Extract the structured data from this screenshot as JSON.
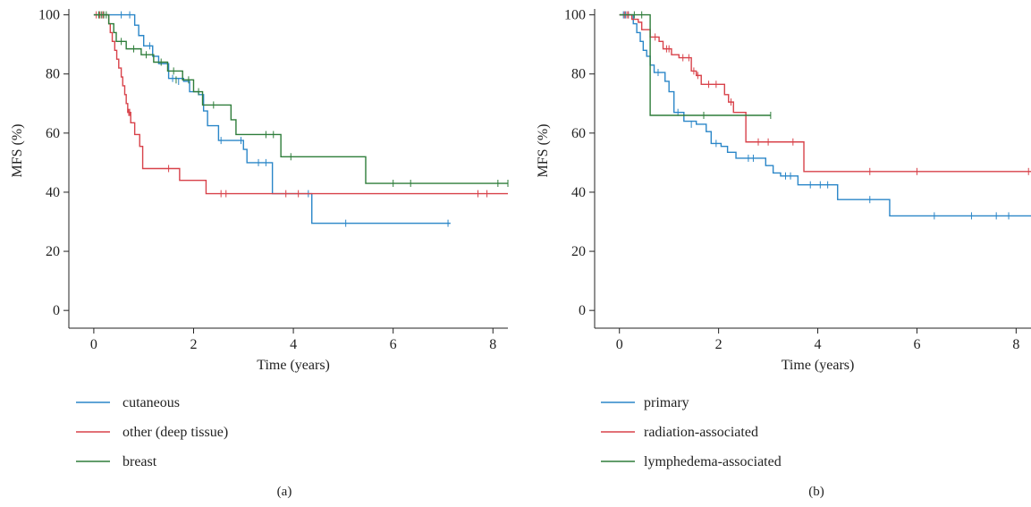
{
  "colors": {
    "blue": "#2a86c8",
    "red": "#d8424a",
    "green": "#2e7d3a"
  },
  "chart_data": [
    {
      "type": "line",
      "title": "",
      "xlabel": "Time (years)",
      "ylabel": "MFS (%)",
      "xlim": [
        -0.5,
        8.3
      ],
      "ylim": [
        -6,
        102
      ],
      "xticks": [
        0,
        2,
        4,
        6,
        8
      ],
      "yticks": [
        0,
        20,
        40,
        60,
        80,
        100
      ],
      "legend_position": "below",
      "panel_label": "(a)",
      "series": [
        {
          "name": "cutaneous",
          "color": "#2a86c8",
          "steps": [
            [
              0,
              100
            ],
            [
              0.82,
              96.5
            ],
            [
              0.9,
              93
            ],
            [
              1.0,
              89.5
            ],
            [
              1.18,
              86
            ],
            [
              1.3,
              83.5
            ],
            [
              1.5,
              78.5
            ],
            [
              1.8,
              77.5
            ],
            [
              1.92,
              74
            ],
            [
              2.1,
              73
            ],
            [
              2.2,
              67.5
            ],
            [
              2.28,
              62.5
            ],
            [
              2.5,
              57.5
            ],
            [
              3.0,
              54.5
            ],
            [
              3.07,
              50
            ],
            [
              3.58,
              39.5
            ],
            [
              4.37,
              29.5
            ],
            [
              7.15,
              29.5
            ]
          ],
          "censored": [
            [
              0.55,
              100
            ],
            [
              0.72,
              100
            ],
            [
              1.12,
              89.5
            ],
            [
              1.58,
              78.5
            ],
            [
              1.7,
              77.5
            ],
            [
              2.55,
              57.5
            ],
            [
              2.95,
              57.5
            ],
            [
              3.3,
              50
            ],
            [
              3.45,
              50
            ],
            [
              4.3,
              39.5
            ],
            [
              5.05,
              29.5
            ],
            [
              7.1,
              29.5
            ]
          ]
        },
        {
          "name": "other (deep tissue)",
          "color": "#d8424a",
          "steps": [
            [
              0,
              100
            ],
            [
              0.3,
              97
            ],
            [
              0.33,
              94
            ],
            [
              0.37,
              91
            ],
            [
              0.42,
              88
            ],
            [
              0.46,
              85
            ],
            [
              0.5,
              82
            ],
            [
              0.55,
              79
            ],
            [
              0.58,
              76
            ],
            [
              0.62,
              73
            ],
            [
              0.65,
              70
            ],
            [
              0.68,
              67
            ],
            [
              0.74,
              63.5
            ],
            [
              0.82,
              59.5
            ],
            [
              0.92,
              55.5
            ],
            [
              0.98,
              48
            ],
            [
              1.72,
              44
            ],
            [
              2.25,
              39.5
            ],
            [
              8.3,
              39.5
            ]
          ],
          "censored": [
            [
              0.05,
              100
            ],
            [
              0.12,
              100
            ],
            [
              0.18,
              100
            ],
            [
              0.7,
              67
            ],
            [
              0.72,
              67
            ],
            [
              1.5,
              48
            ],
            [
              2.55,
              39.5
            ],
            [
              2.65,
              39.5
            ],
            [
              3.85,
              39.5
            ],
            [
              4.1,
              39.5
            ],
            [
              7.7,
              39.5
            ],
            [
              7.88,
              39.5
            ]
          ]
        },
        {
          "name": "breast",
          "color": "#2e7d3a",
          "steps": [
            [
              0,
              100
            ],
            [
              0.3,
              97
            ],
            [
              0.4,
              94
            ],
            [
              0.45,
              91
            ],
            [
              0.65,
              88.5
            ],
            [
              0.95,
              86.5
            ],
            [
              1.2,
              84
            ],
            [
              1.48,
              81
            ],
            [
              1.78,
              78
            ],
            [
              2.0,
              74
            ],
            [
              2.18,
              69.5
            ],
            [
              2.75,
              64.5
            ],
            [
              2.85,
              59.5
            ],
            [
              3.75,
              52
            ],
            [
              5.45,
              43
            ],
            [
              8.3,
              43
            ]
          ],
          "censored": [
            [
              0.1,
              100
            ],
            [
              0.15,
              100
            ],
            [
              0.2,
              100
            ],
            [
              0.25,
              100
            ],
            [
              0.55,
              91
            ],
            [
              0.8,
              88.5
            ],
            [
              1.05,
              86.5
            ],
            [
              1.35,
              84
            ],
            [
              1.6,
              81
            ],
            [
              1.65,
              78
            ],
            [
              1.9,
              78
            ],
            [
              2.1,
              74
            ],
            [
              2.4,
              69.5
            ],
            [
              3.45,
              59.5
            ],
            [
              3.6,
              59.5
            ],
            [
              3.95,
              52
            ],
            [
              6.0,
              43
            ],
            [
              6.35,
              43
            ],
            [
              8.1,
              43
            ],
            [
              8.3,
              43
            ]
          ]
        }
      ]
    },
    {
      "type": "line",
      "title": "",
      "xlabel": "Time (years)",
      "ylabel": "MFS (%)",
      "xlim": [
        -0.5,
        8.3
      ],
      "ylim": [
        -6,
        102
      ],
      "xticks": [
        0,
        2,
        4,
        6,
        8
      ],
      "yticks": [
        0,
        20,
        40,
        60,
        80,
        100
      ],
      "legend_position": "below",
      "panel_label": "(b)",
      "series": [
        {
          "name": "primary",
          "color": "#2a86c8",
          "steps": [
            [
              0,
              100
            ],
            [
              0.28,
              97
            ],
            [
              0.35,
              94
            ],
            [
              0.42,
              91
            ],
            [
              0.48,
              88
            ],
            [
              0.55,
              86
            ],
            [
              0.62,
              83
            ],
            [
              0.7,
              80.5
            ],
            [
              0.92,
              77.5
            ],
            [
              1.0,
              74
            ],
            [
              1.1,
              67
            ],
            [
              1.3,
              64
            ],
            [
              1.55,
              63
            ],
            [
              1.75,
              60.5
            ],
            [
              1.85,
              56.5
            ],
            [
              2.05,
              55.5
            ],
            [
              2.18,
              53.5
            ],
            [
              2.35,
              51.5
            ],
            [
              2.95,
              49
            ],
            [
              3.1,
              46.5
            ],
            [
              3.25,
              45.5
            ],
            [
              3.6,
              42.5
            ],
            [
              4.3,
              42.5
            ],
            [
              4.4,
              37.5
            ],
            [
              5.45,
              32
            ],
            [
              8.3,
              32
            ]
          ],
          "censored": [
            [
              0.08,
              100
            ],
            [
              0.12,
              100
            ],
            [
              0.18,
              100
            ],
            [
              0.78,
              80.5
            ],
            [
              1.18,
              67
            ],
            [
              1.45,
              63
            ],
            [
              1.95,
              56.5
            ],
            [
              2.6,
              51.5
            ],
            [
              2.7,
              51.5
            ],
            [
              3.35,
              45.5
            ],
            [
              3.45,
              45.5
            ],
            [
              3.85,
              42.5
            ],
            [
              4.05,
              42.5
            ],
            [
              4.2,
              42.5
            ],
            [
              5.05,
              37.5
            ],
            [
              6.35,
              32
            ],
            [
              7.1,
              32
            ],
            [
              7.6,
              32
            ],
            [
              7.85,
              32
            ]
          ]
        },
        {
          "name": "radiation-associated",
          "color": "#d8424a",
          "steps": [
            [
              0,
              100
            ],
            [
              0.25,
              98.5
            ],
            [
              0.38,
              97.5
            ],
            [
              0.45,
              95
            ],
            [
              0.62,
              92.5
            ],
            [
              0.8,
              91
            ],
            [
              0.88,
              88.5
            ],
            [
              1.05,
              86.5
            ],
            [
              1.2,
              85.5
            ],
            [
              1.45,
              81
            ],
            [
              1.55,
              79.5
            ],
            [
              1.65,
              76.5
            ],
            [
              2.12,
              73
            ],
            [
              2.2,
              70.5
            ],
            [
              2.3,
              67
            ],
            [
              2.55,
              57
            ],
            [
              3.6,
              57
            ],
            [
              3.72,
              47
            ],
            [
              8.3,
              47
            ]
          ],
          "censored": [
            [
              0.1,
              100
            ],
            [
              0.15,
              100
            ],
            [
              0.18,
              100
            ],
            [
              0.72,
              92.5
            ],
            [
              0.95,
              88.5
            ],
            [
              1.0,
              88.5
            ],
            [
              1.28,
              85.5
            ],
            [
              1.4,
              85.5
            ],
            [
              1.5,
              81
            ],
            [
              1.58,
              79.5
            ],
            [
              1.8,
              76.5
            ],
            [
              1.95,
              76.5
            ],
            [
              2.25,
              70.5
            ],
            [
              2.8,
              57
            ],
            [
              3.0,
              57
            ],
            [
              3.5,
              57
            ],
            [
              5.05,
              47
            ],
            [
              6.0,
              47
            ],
            [
              8.25,
              47
            ]
          ]
        },
        {
          "name": "lymphedema-associated",
          "color": "#2e7d3a",
          "steps": [
            [
              0,
              100
            ],
            [
              0.62,
              66
            ],
            [
              3.05,
              66
            ]
          ],
          "censored": [
            [
              0.3,
              100
            ],
            [
              0.45,
              100
            ],
            [
              1.7,
              66
            ],
            [
              3.05,
              66
            ]
          ]
        }
      ]
    }
  ]
}
